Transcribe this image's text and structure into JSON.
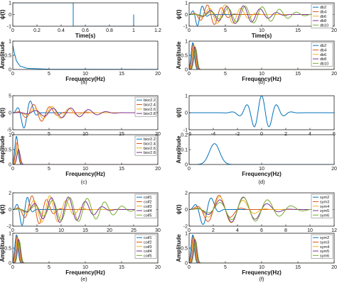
{
  "colors": [
    "#0072BD",
    "#D95319",
    "#EDB120",
    "#7E2F8E",
    "#77AC30"
  ],
  "panels": [
    {
      "id": "a",
      "caption": "(a)",
      "top": {
        "xlabel": "Time(s)",
        "ylabel": "ψ(t)",
        "xticks": [
          "0",
          "0.2",
          "0.4",
          "0.6",
          "0.8",
          "1",
          "1.2"
        ],
        "yticks": [
          "1",
          "0",
          "-1"
        ],
        "xlim": [
          0,
          1.2
        ],
        "ylim": [
          -1,
          1
        ],
        "legend": []
      },
      "bottom": {
        "xlabel": "Frequency(Hz)",
        "ylabel": "Amplitude",
        "xticks": [
          "0",
          "5",
          "10",
          "15",
          "20"
        ],
        "yticks": [
          "1",
          "0.5",
          "0"
        ],
        "xlim": [
          0,
          20
        ],
        "ylim": [
          0,
          1
        ],
        "legend": []
      }
    },
    {
      "id": "b",
      "caption": "(b)",
      "top": {
        "xlabel": "Time(s)",
        "ylabel": "ψ(t)",
        "xticks": [
          "0",
          "5",
          "10",
          "15",
          "20"
        ],
        "yticks": [
          "1",
          "0",
          "-1"
        ],
        "xlim": [
          0,
          20
        ],
        "ylim": [
          -1,
          1
        ],
        "legend": [
          "db2",
          "db4",
          "db6",
          "db8",
          "db10"
        ]
      },
      "bottom": {
        "xlabel": "Frequency(Hz)",
        "ylabel": "Amplitude",
        "xticks": [
          "0",
          "5",
          "10",
          "15",
          "20"
        ],
        "yticks": [
          "1",
          "0.5",
          "0"
        ],
        "xlim": [
          0,
          20
        ],
        "ylim": [
          0,
          1
        ],
        "legend": [
          "db2",
          "db4",
          "db6",
          "db8",
          "db10"
        ]
      }
    },
    {
      "id": "c",
      "caption": "(c)",
      "top": {
        "xlabel": "",
        "ylabel": "ψ(t)",
        "xticks": [
          "0",
          "5",
          "10",
          "15",
          "20"
        ],
        "yticks": [
          "5",
          "0",
          "-5"
        ],
        "xlim": [
          0,
          20
        ],
        "ylim": [
          -5,
          5
        ],
        "legend": [
          "bior2.2",
          "bior2.4",
          "bior2.6",
          "bior2.8"
        ]
      },
      "bottom": {
        "xlabel": "Frequency(Hz)",
        "ylabel": "Amplitude",
        "xticks": [
          "0",
          "5",
          "10",
          "15",
          "20"
        ],
        "yticks": [
          "1",
          "0.5",
          "0"
        ],
        "xlim": [
          0,
          20
        ],
        "ylim": [
          0,
          1
        ],
        "legend": [
          "bior2.2",
          "bior2.4",
          "bior2.6",
          "bior2.8"
        ]
      }
    },
    {
      "id": "d",
      "caption": "(d)",
      "top": {
        "xlabel": "",
        "ylabel": "ψ(t)",
        "xticks": [
          "-6",
          "-4",
          "-2",
          "0",
          "2",
          "4",
          "6"
        ],
        "yticks": [
          "1",
          "0",
          "-1"
        ],
        "xlim": [
          -6,
          6
        ],
        "ylim": [
          -1,
          1
        ],
        "legend": []
      },
      "bottom": {
        "xlabel": "Frequency(Hz)",
        "ylabel": "Amplitude",
        "xticks": [
          "0",
          "10",
          "20"
        ],
        "yticks": [
          "0.2",
          "0.1",
          "0"
        ],
        "xlim": [
          0,
          20
        ],
        "ylim": [
          0,
          0.2
        ],
        "legend": []
      }
    },
    {
      "id": "e",
      "caption": "(e)",
      "top": {
        "xlabel": "",
        "ylabel": "ψ(t)",
        "xticks": [
          "0",
          "5",
          "10",
          "15",
          "20",
          "25",
          "30"
        ],
        "yticks": [
          "2",
          "0",
          "-2"
        ],
        "xlim": [
          0,
          30
        ],
        "ylim": [
          -2,
          2
        ],
        "legend": [
          "coif1",
          "coif2",
          "coif3",
          "coif4",
          "coif5"
        ]
      },
      "bottom": {
        "xlabel": "Frequency(Hz)",
        "ylabel": "Amplitude",
        "xticks": [
          "0",
          "5",
          "10",
          "15",
          "20"
        ],
        "yticks": [
          "1",
          "0.5",
          "0"
        ],
        "xlim": [
          0,
          20
        ],
        "ylim": [
          0,
          1
        ],
        "legend": [
          "coif1",
          "coif2",
          "coif3",
          "coif4",
          "coif5"
        ]
      }
    },
    {
      "id": "f",
      "caption": "(f)",
      "top": {
        "xlabel": "",
        "ylabel": "ψ(t)",
        "xticks": [
          "0",
          "2",
          "4",
          "6",
          "8",
          "10",
          "12"
        ],
        "yticks": [
          "2",
          "0",
          "-2"
        ],
        "xlim": [
          0,
          12
        ],
        "ylim": [
          -2,
          2
        ],
        "legend": [
          "sym2",
          "sym3",
          "sym4",
          "sym5",
          "sym6"
        ]
      },
      "bottom": {
        "xlabel": "Frequency(Hz)",
        "ylabel": "Amplitude",
        "xticks": [
          "0",
          "5",
          "10",
          "15",
          "20"
        ],
        "yticks": [
          "1",
          "0.5",
          "0"
        ],
        "xlim": [
          0,
          20
        ],
        "ylim": [
          0,
          1
        ],
        "legend": [
          "sym2",
          "sym3",
          "sym4",
          "sym5",
          "sym6"
        ]
      }
    }
  ],
  "chart_data": [
    {
      "type": "line",
      "panel": "a-top",
      "xlabel": "Time(s)",
      "ylabel": "ψ(t)",
      "xlim": [
        0,
        1.2
      ],
      "ylim": [
        -1,
        1
      ],
      "series": [
        {
          "x": [
            0,
            0,
            0.5,
            0.5,
            1,
            1
          ],
          "y": [
            0,
            1,
            1,
            -1,
            -1,
            0
          ]
        }
      ]
    },
    {
      "type": "line",
      "panel": "a-bottom",
      "xlabel": "Frequency(Hz)",
      "ylabel": "Amplitude",
      "xlim": [
        0,
        20
      ],
      "ylim": [
        0,
        1
      ],
      "series": [
        {
          "x": [
            0,
            0.2,
            0.5,
            1,
            2,
            5,
            10,
            20
          ],
          "y": [
            0.85,
            0.6,
            0.3,
            0.12,
            0.04,
            0.01,
            0.005,
            0.002
          ]
        }
      ]
    },
    {
      "type": "line",
      "panel": "b-top",
      "xlabel": "Time(s)",
      "ylabel": "ψ(t)",
      "xlim": [
        0,
        20
      ],
      "ylim": [
        -1,
        1
      ],
      "series": [
        {
          "name": "db2",
          "kind": "wavelet",
          "start": 0,
          "end": 3,
          "amp": 0.95,
          "cycles": 2
        },
        {
          "name": "db4",
          "kind": "wavelet",
          "start": 0,
          "end": 7,
          "amp": 0.85,
          "cycles": 3.5
        },
        {
          "name": "db6",
          "kind": "wavelet",
          "start": 0,
          "end": 11,
          "amp": 0.8,
          "cycles": 5
        },
        {
          "name": "db8",
          "kind": "wavelet",
          "start": 0,
          "end": 15,
          "amp": 0.75,
          "cycles": 6.5
        },
        {
          "name": "db10",
          "kind": "wavelet",
          "start": 0,
          "end": 19,
          "amp": 0.7,
          "cycles": 8
        }
      ]
    },
    {
      "type": "line",
      "panel": "b-bottom",
      "xlabel": "Frequency(Hz)",
      "ylabel": "Amplitude",
      "xlim": [
        0,
        20
      ],
      "ylim": [
        0,
        1
      ],
      "series": [
        {
          "name": "db2",
          "kind": "peak",
          "center": 0.5,
          "width": 0.3,
          "amp": 0.95
        },
        {
          "name": "db4",
          "kind": "peak",
          "center": 0.6,
          "width": 0.3,
          "amp": 0.9
        },
        {
          "name": "db6",
          "kind": "peak",
          "center": 0.7,
          "width": 0.3,
          "amp": 0.85
        },
        {
          "name": "db8",
          "kind": "peak",
          "center": 0.8,
          "width": 0.3,
          "amp": 0.8
        },
        {
          "name": "db10",
          "kind": "peak",
          "center": 0.9,
          "width": 0.3,
          "amp": 0.75
        }
      ]
    },
    {
      "type": "line",
      "panel": "c-top",
      "ylabel": "ψ(t)",
      "xlim": [
        0,
        20
      ],
      "ylim": [
        -5,
        5
      ],
      "series": [
        {
          "name": "bior2.2",
          "kind": "wavelet",
          "start": 0,
          "end": 4,
          "amp": 4.5,
          "cycles": 2
        },
        {
          "name": "bior2.4",
          "kind": "wavelet",
          "start": 0,
          "end": 8,
          "amp": 2.5,
          "cycles": 3.5
        },
        {
          "name": "bior2.6",
          "kind": "wavelet",
          "start": 0,
          "end": 12,
          "amp": 1.8,
          "cycles": 5
        },
        {
          "name": "bior2.8",
          "kind": "wavelet",
          "start": 0,
          "end": 16,
          "amp": 1.4,
          "cycles": 6.5
        }
      ]
    },
    {
      "type": "line",
      "panel": "c-bottom",
      "xlabel": "Frequency(Hz)",
      "ylabel": "Amplitude",
      "xlim": [
        0,
        20
      ],
      "ylim": [
        0,
        1
      ],
      "series": [
        {
          "name": "bior2.2",
          "kind": "peak",
          "center": 0.5,
          "width": 0.3,
          "amp": 0.95
        },
        {
          "name": "bior2.4",
          "kind": "peak",
          "center": 0.6,
          "width": 0.3,
          "amp": 0.75
        },
        {
          "name": "bior2.6",
          "kind": "peak",
          "center": 0.7,
          "width": 0.3,
          "amp": 0.6
        },
        {
          "name": "bior2.8",
          "kind": "peak",
          "center": 0.8,
          "width": 0.3,
          "amp": 0.5
        }
      ]
    },
    {
      "type": "line",
      "panel": "d-top",
      "ylabel": "ψ(t)",
      "xlim": [
        -6,
        6
      ],
      "ylim": [
        -1,
        1
      ],
      "series": [
        {
          "kind": "morlet",
          "amp": 1.0,
          "omega": 5.0
        }
      ]
    },
    {
      "type": "line",
      "panel": "d-bottom",
      "xlabel": "Frequency(Hz)",
      "ylabel": "Amplitude",
      "xlim": [
        0,
        20
      ],
      "ylim": [
        0,
        0.2
      ],
      "series": [
        {
          "kind": "peak",
          "center": 3.5,
          "width": 1.0,
          "amp": 0.14
        }
      ]
    },
    {
      "type": "line",
      "panel": "e-top",
      "ylabel": "ψ(t)",
      "xlim": [
        0,
        30
      ],
      "ylim": [
        -2,
        2
      ],
      "series": [
        {
          "name": "coif1",
          "kind": "wavelet",
          "start": 0,
          "end": 5,
          "amp": 1.9,
          "cycles": 2
        },
        {
          "name": "coif2",
          "kind": "wavelet",
          "start": 0,
          "end": 11,
          "amp": 1.7,
          "cycles": 3.5
        },
        {
          "name": "coif3",
          "kind": "wavelet",
          "start": 0,
          "end": 17,
          "amp": 1.6,
          "cycles": 5
        },
        {
          "name": "coif4",
          "kind": "wavelet",
          "start": 0,
          "end": 23,
          "amp": 1.5,
          "cycles": 6.5
        },
        {
          "name": "coif5",
          "kind": "wavelet",
          "start": 0,
          "end": 29,
          "amp": 1.4,
          "cycles": 8
        }
      ]
    },
    {
      "type": "line",
      "panel": "e-bottom",
      "xlabel": "Frequency(Hz)",
      "ylabel": "Amplitude",
      "xlim": [
        0,
        20
      ],
      "ylim": [
        0,
        1
      ],
      "series": [
        {
          "name": "coif1",
          "kind": "peak",
          "center": 0.5,
          "width": 0.3,
          "amp": 0.95
        },
        {
          "name": "coif2",
          "kind": "peak",
          "center": 0.6,
          "width": 0.3,
          "amp": 0.9
        },
        {
          "name": "coif3",
          "kind": "peak",
          "center": 0.7,
          "width": 0.3,
          "amp": 0.85
        },
        {
          "name": "coif4",
          "kind": "peak",
          "center": 0.8,
          "width": 0.3,
          "amp": 0.8
        },
        {
          "name": "coif5",
          "kind": "peak",
          "center": 0.9,
          "width": 0.3,
          "amp": 0.75
        }
      ]
    },
    {
      "type": "line",
      "panel": "f-top",
      "ylabel": "ψ(t)",
      "xlim": [
        0,
        12
      ],
      "ylim": [
        -2,
        2
      ],
      "series": [
        {
          "name": "sym2",
          "kind": "wavelet",
          "start": 0,
          "end": 3,
          "amp": 1.8,
          "cycles": 2
        },
        {
          "name": "sym3",
          "kind": "wavelet",
          "start": 0,
          "end": 5,
          "amp": 1.7,
          "cycles": 2.5
        },
        {
          "name": "sym4",
          "kind": "wavelet",
          "start": 0,
          "end": 7,
          "amp": 1.6,
          "cycles": 3.5
        },
        {
          "name": "sym5",
          "kind": "wavelet",
          "start": 0,
          "end": 9,
          "amp": 1.5,
          "cycles": 4.5
        },
        {
          "name": "sym6",
          "kind": "wavelet",
          "start": 0,
          "end": 11,
          "amp": 1.4,
          "cycles": 5.5
        }
      ]
    },
    {
      "type": "line",
      "panel": "f-bottom",
      "xlabel": "Frequency(Hz)",
      "ylabel": "Amplitude",
      "xlim": [
        0,
        20
      ],
      "ylim": [
        0,
        1
      ],
      "series": [
        {
          "name": "sym2",
          "kind": "peak",
          "center": 0.5,
          "width": 0.3,
          "amp": 0.95
        },
        {
          "name": "sym3",
          "kind": "peak",
          "center": 0.6,
          "width": 0.3,
          "amp": 0.9
        },
        {
          "name": "sym4",
          "kind": "peak",
          "center": 0.7,
          "width": 0.3,
          "amp": 0.85
        },
        {
          "name": "sym5",
          "kind": "peak",
          "center": 0.8,
          "width": 0.3,
          "amp": 0.8
        },
        {
          "name": "sym6",
          "kind": "peak",
          "center": 0.9,
          "width": 0.3,
          "amp": 0.75
        }
      ]
    }
  ]
}
